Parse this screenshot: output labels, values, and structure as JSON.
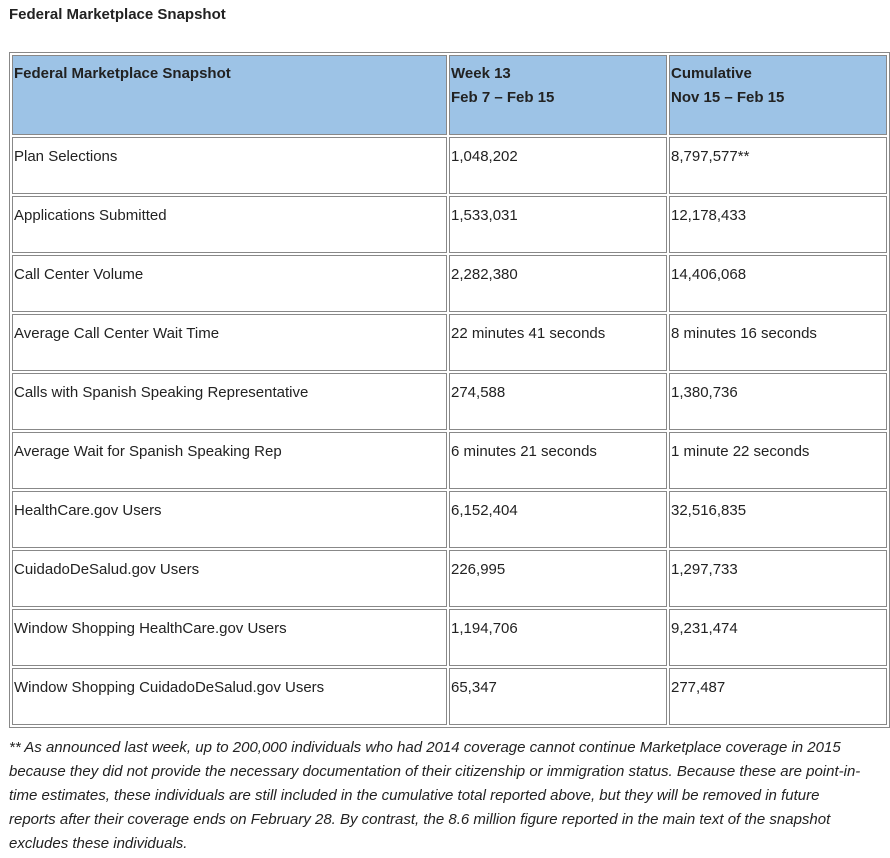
{
  "title": "Federal Marketplace Snapshot",
  "table": {
    "header": [
      [
        "Federal Marketplace Snapshot"
      ],
      [
        "Week 13",
        "Feb 7 – Feb 15"
      ],
      [
        "Cumulative",
        "Nov 15 – Feb 15"
      ]
    ],
    "rows": [
      [
        "Plan Selections",
        "1,048,202",
        "8,797,577**"
      ],
      [
        "Applications Submitted",
        "1,533,031",
        "12,178,433"
      ],
      [
        "Call Center Volume",
        "2,282,380",
        "14,406,068"
      ],
      [
        "Average Call Center Wait Time",
        "22 minutes 41 seconds",
        "8 minutes 16 seconds"
      ],
      [
        "Calls with Spanish Speaking Representative",
        "274,588",
        "1,380,736"
      ],
      [
        "Average Wait for Spanish Speaking Rep",
        "6 minutes 21 seconds",
        "1 minute 22 seconds"
      ],
      [
        "HealthCare.gov Users",
        "6,152,404",
        "32,516,835"
      ],
      [
        "CuidadoDeSalud.gov Users",
        "226,995",
        "1,297,733"
      ],
      [
        "Window Shopping HealthCare.gov Users",
        "1,194,706",
        "9,231,474"
      ],
      [
        "Window Shopping CuidadoDeSalud.gov Users",
        "65,347",
        "277,487"
      ]
    ]
  },
  "footnote": "** As announced last week, up to 200,000 individuals who had 2014 coverage cannot continue Marketplace coverage in 2015 because they did not provide the necessary documentation of their citizenship or immigration status. Because these are point-in-time estimates, these individuals are still included in the cumulative total reported above, but they will be removed in future reports after their coverage ends on February 28. By contrast, the 8.6 million figure reported in the main text of the snapshot excludes these individuals."
}
